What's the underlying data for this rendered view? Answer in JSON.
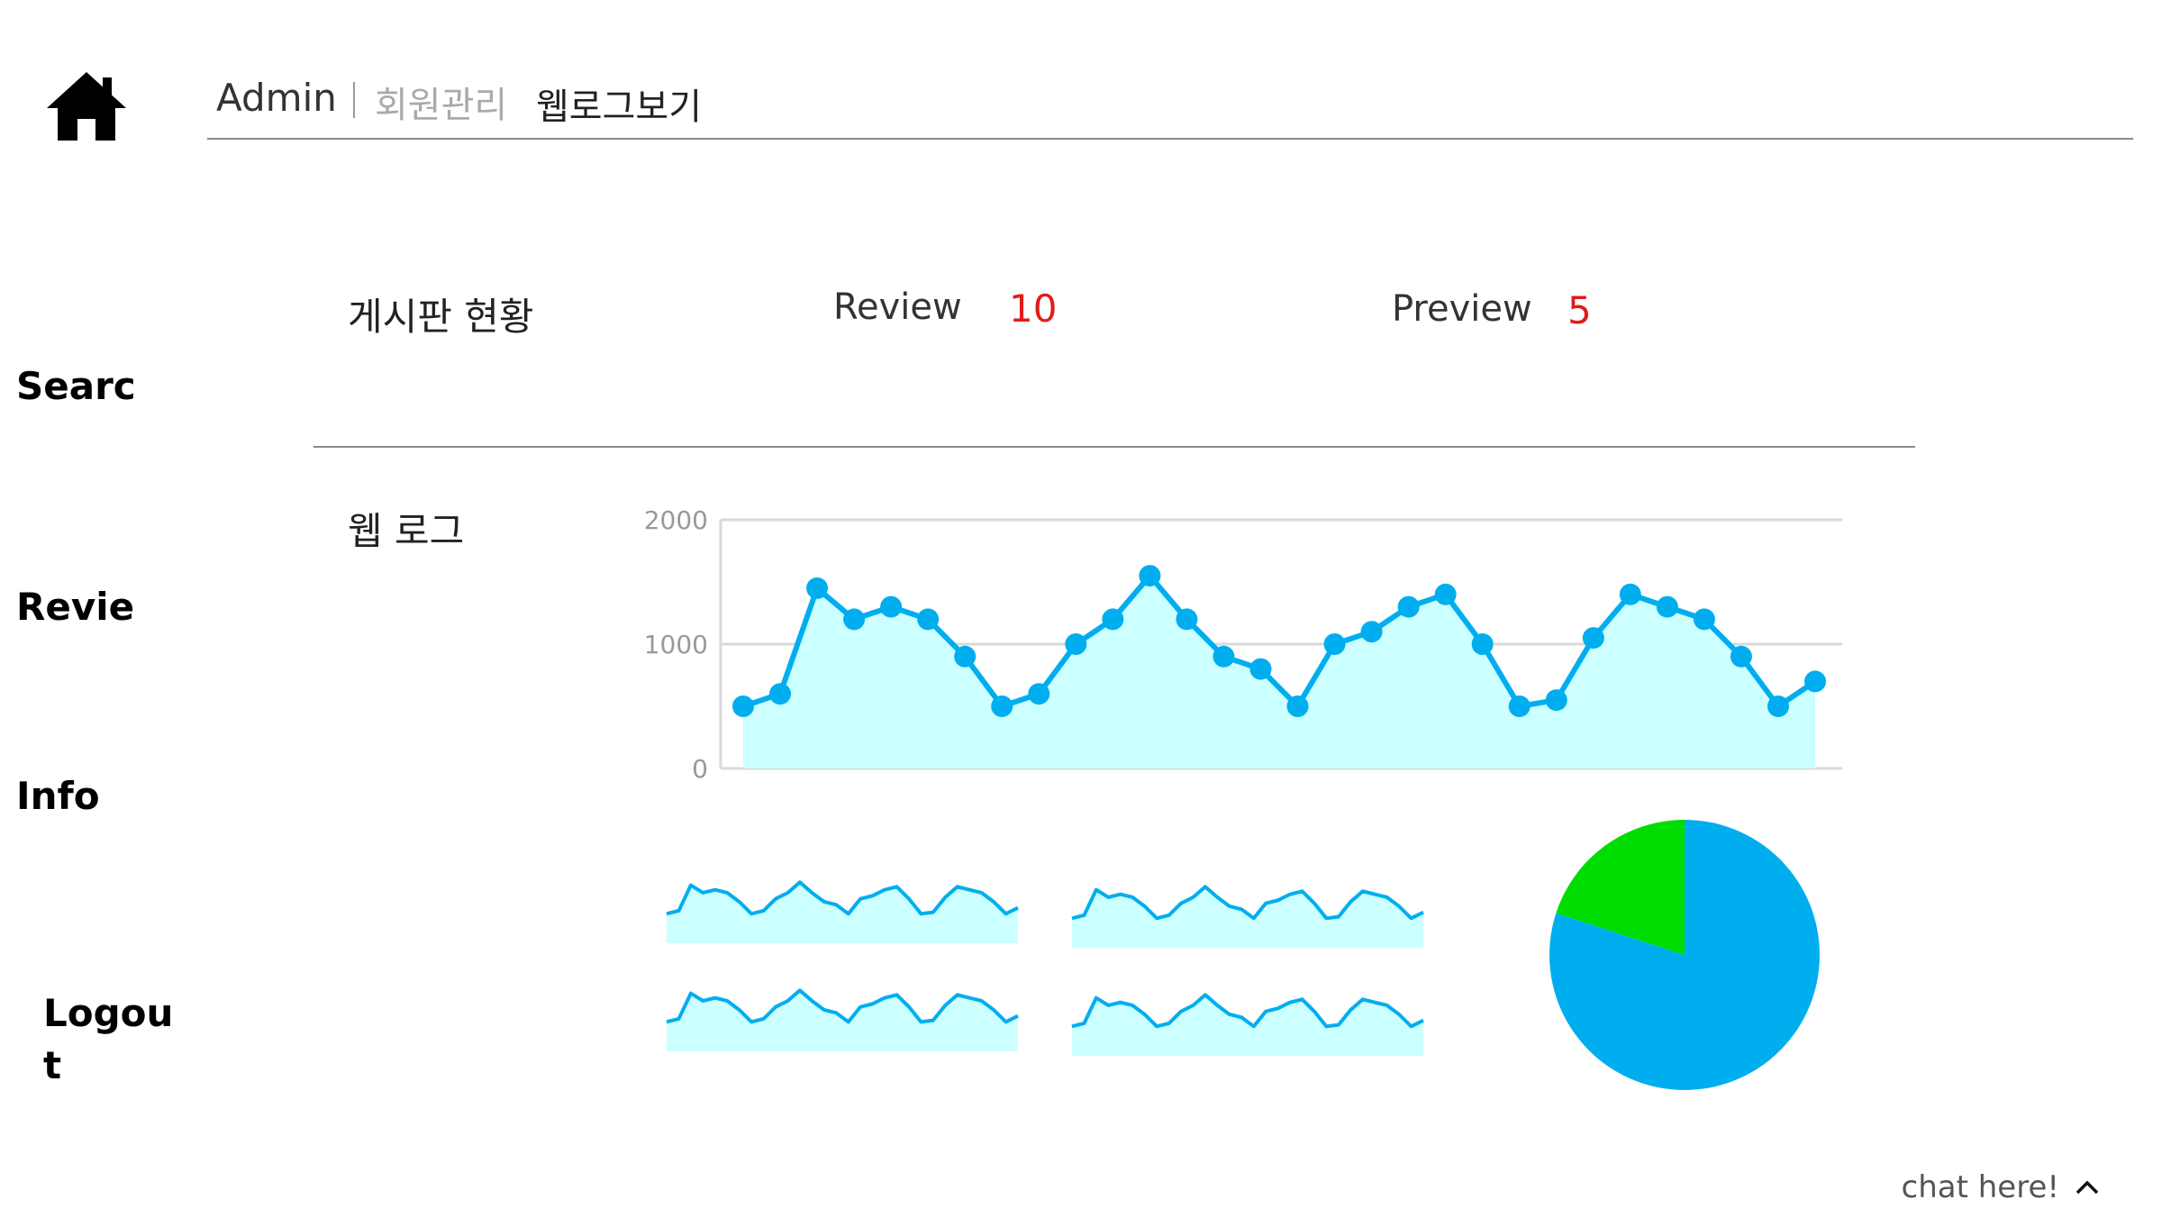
{
  "header": {
    "admin_label": "Admin",
    "member_label": "회원관리",
    "weblog_label": "웹로그보기",
    "home_icon": "home-icon"
  },
  "sidebar": {
    "items": [
      {
        "label": "Searc"
      },
      {
        "label": "Revie"
      },
      {
        "label": "Info"
      },
      {
        "label": "Logou\nt"
      }
    ]
  },
  "board": {
    "title": "게시판 현황",
    "stats": [
      {
        "label": "Review",
        "value": "10"
      },
      {
        "label": "Preview",
        "value": "5"
      }
    ]
  },
  "weblog": {
    "title": "웹 로그"
  },
  "chat": {
    "label": "chat here!",
    "icon": "chevron-up-icon"
  },
  "colors": {
    "line": "#00aeef",
    "fill": "#ccffff",
    "pie_primary": "#00aeef",
    "pie_secondary": "#00dd00",
    "accent_red": "#e31b1b"
  },
  "chart_data": [
    {
      "type": "area",
      "title": "",
      "xlabel": "",
      "ylabel": "",
      "ylim": [
        0,
        2000
      ],
      "yticks": [
        "0",
        "1000",
        "2000"
      ],
      "grid": true,
      "series": [
        {
          "values": [
            500,
            600,
            1450,
            1200,
            1300,
            1200,
            900,
            500,
            600,
            1000,
            1200,
            1550,
            1200,
            900,
            800,
            500,
            1000,
            1100,
            1300,
            1400,
            1000,
            500,
            550,
            1050,
            1400,
            1300,
            1200,
            900,
            500,
            700
          ]
        }
      ]
    },
    {
      "type": "area",
      "series": [
        {
          "values": [
            500,
            600,
            1450,
            1200,
            1300,
            1200,
            900,
            500,
            600,
            1000,
            1200,
            1550,
            1200,
            900,
            800,
            500,
            1000,
            1100,
            1300,
            1400,
            1000,
            500,
            550,
            1050,
            1400,
            1300,
            1200,
            900,
            500,
            700
          ]
        }
      ]
    },
    {
      "type": "area",
      "series": [
        {
          "values": [
            500,
            600,
            1450,
            1200,
            1300,
            1200,
            900,
            500,
            600,
            1000,
            1200,
            1550,
            1200,
            900,
            800,
            500,
            1000,
            1100,
            1300,
            1400,
            1000,
            500,
            550,
            1050,
            1400,
            1300,
            1200,
            900,
            500,
            700
          ]
        }
      ]
    },
    {
      "type": "area",
      "series": [
        {
          "values": [
            500,
            600,
            1450,
            1200,
            1300,
            1200,
            900,
            500,
            600,
            1000,
            1200,
            1550,
            1200,
            900,
            800,
            500,
            1000,
            1100,
            1300,
            1400,
            1000,
            500,
            550,
            1050,
            1400,
            1300,
            1200,
            900,
            500,
            700
          ]
        }
      ]
    },
    {
      "type": "area",
      "series": [
        {
          "values": [
            500,
            600,
            1450,
            1200,
            1300,
            1200,
            900,
            500,
            600,
            1000,
            1200,
            1550,
            1200,
            900,
            800,
            500,
            1000,
            1100,
            1300,
            1400,
            1000,
            500,
            550,
            1050,
            1400,
            1300,
            1200,
            900,
            500,
            700
          ]
        }
      ]
    },
    {
      "type": "pie",
      "values": [
        80,
        20
      ],
      "colors": [
        "#00aeef",
        "#00dd00"
      ]
    }
  ]
}
